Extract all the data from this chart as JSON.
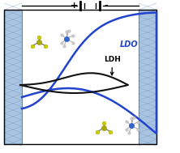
{
  "background_color": "#ffffff",
  "electrode_fill": "#a8c4e0",
  "electrode_edge": "#5588bb",
  "hatch_color": "#7799cc",
  "border_color": "#000000",
  "ldo_color": "#2244cc",
  "ldh_color": "#111111",
  "ldo_label": "LDO",
  "ldh_label": "LDH",
  "plus_symbol": "+",
  "minus_symbol": "-",
  "ldo_lw": 1.8,
  "ldh_lw": 1.5
}
